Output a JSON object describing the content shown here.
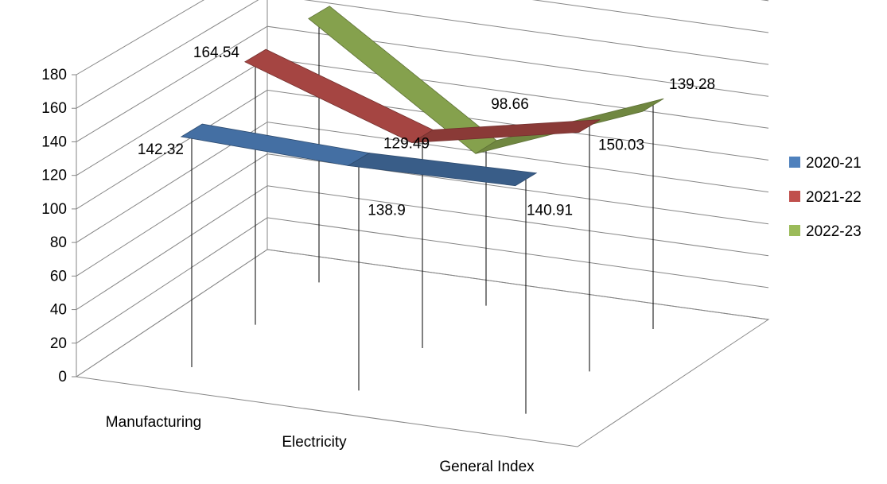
{
  "chart_data": {
    "type": "line",
    "categories": [
      "Manufacturing",
      "Electricity",
      "General Index"
    ],
    "series": [
      {
        "name": "2020-21",
        "values": [
          142.32,
          138.9,
          140.91
        ],
        "color": "#4f81bd"
      },
      {
        "name": "2021-22",
        "values": [
          164.54,
          129.49,
          150.03
        ],
        "color": "#c0504d"
      },
      {
        "name": "2022-23",
        "values": [
          167.96,
          98.66,
          139.28
        ],
        "color": "#9bbb59"
      }
    ],
    "yticks": [
      "0",
      "20",
      "40",
      "60",
      "80",
      "100",
      "120",
      "140",
      "160",
      "180"
    ],
    "ylim": [
      0,
      180
    ],
    "grid": true,
    "legend_position": "right"
  }
}
